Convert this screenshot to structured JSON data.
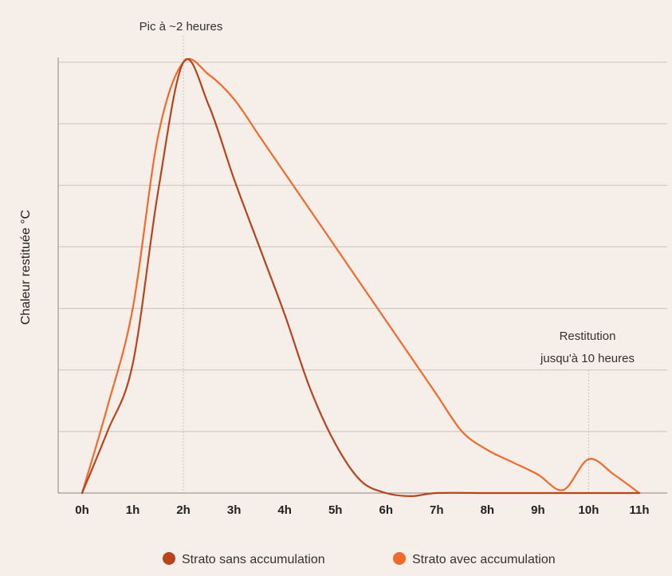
{
  "chart_data": {
    "type": "line",
    "ylabel": "Chaleur restituée °C",
    "xlabel": "",
    "x": [
      0,
      1,
      2,
      3,
      4,
      5,
      6,
      7,
      8,
      9,
      10,
      11
    ],
    "tick_labels": [
      "0h",
      "1h",
      "2h",
      "3h",
      "4h",
      "5h",
      "6h",
      "7h",
      "8h",
      "9h",
      "10h",
      "11h"
    ],
    "xlim": [
      0,
      11
    ],
    "ylim": [
      0,
      7
    ],
    "grid": true,
    "legend_position": "bottom",
    "series": [
      {
        "name": "Strato sans accumulation",
        "color": "#b5441f",
        "x": [
          0,
          0.5,
          1.0,
          1.5,
          2.0,
          2.5,
          3.0,
          3.5,
          4.0,
          4.5,
          5.0,
          5.5,
          6.0,
          6.5,
          7.0,
          8.0,
          9.0,
          10.0,
          11.0
        ],
        "values": [
          0,
          1.0,
          2.1,
          4.9,
          7.0,
          6.3,
          5.1,
          4.0,
          2.9,
          1.7,
          0.8,
          0.2,
          0,
          -0.05,
          0,
          0,
          0,
          0,
          0
        ]
      },
      {
        "name": "Strato avec accumulation",
        "color": "#ee6b2d",
        "x": [
          0,
          0.5,
          1.0,
          1.5,
          2.0,
          2.5,
          3.0,
          3.5,
          4.0,
          4.5,
          5.0,
          5.5,
          6.0,
          6.5,
          7.0,
          7.5,
          8.0,
          8.5,
          9.0,
          9.5,
          10.0,
          10.5,
          11.0
        ],
        "values": [
          0,
          1.4,
          3.0,
          5.8,
          7.0,
          6.8,
          6.4,
          5.8,
          5.2,
          4.6,
          4.0,
          3.4,
          2.8,
          2.2,
          1.6,
          1.0,
          0.7,
          0.5,
          0.3,
          0.05,
          0.55,
          0.3,
          0
        ]
      }
    ],
    "annotations": [
      {
        "id": "peak",
        "lines": [
          "Pic à ~2 heures"
        ],
        "x": 2
      },
      {
        "id": "restitution",
        "lines": [
          "Restitution",
          "jusqu'à 10 heures"
        ],
        "x": 10
      }
    ]
  }
}
